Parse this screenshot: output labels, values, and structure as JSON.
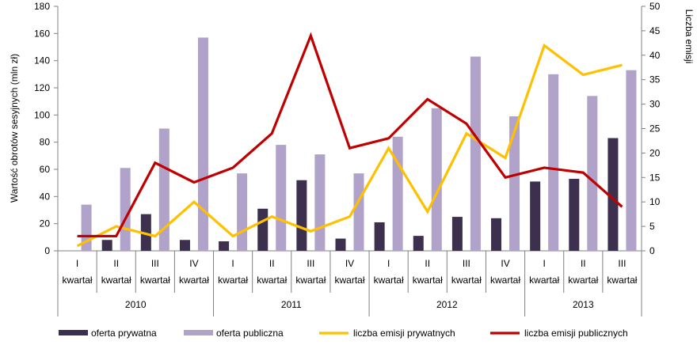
{
  "chart_data": {
    "type": "bar",
    "ylabel": "Wartość obrotów sesyjnych  (mln zł)",
    "y2label": "Liczba emisji",
    "ylim": [
      0,
      180
    ],
    "y2lim": [
      0,
      50
    ],
    "yticks": [
      "0",
      "20",
      "40",
      "60",
      "80",
      "100",
      "120",
      "140",
      "160",
      "180"
    ],
    "y2ticks": [
      "0",
      "5",
      "10",
      "15",
      "20",
      "25",
      "30",
      "35",
      "40",
      "45",
      "50"
    ],
    "categories": [
      {
        "quarter": "I",
        "sub": "kwartał"
      },
      {
        "quarter": "II",
        "sub": "kwartał"
      },
      {
        "quarter": "III",
        "sub": "kwartał"
      },
      {
        "quarter": "IV",
        "sub": "kwartał"
      },
      {
        "quarter": "I",
        "sub": "kwartał"
      },
      {
        "quarter": "II",
        "sub": "kwartał"
      },
      {
        "quarter": "III",
        "sub": "kwartał"
      },
      {
        "quarter": "IV",
        "sub": "kwartał"
      },
      {
        "quarter": "I",
        "sub": "kwartał"
      },
      {
        "quarter": "II",
        "sub": "kwartał"
      },
      {
        "quarter": "III",
        "sub": "kwartał"
      },
      {
        "quarter": "IV",
        "sub": "kwartał"
      },
      {
        "quarter": "I",
        "sub": "kwartał"
      },
      {
        "quarter": "II",
        "sub": "kwartał"
      },
      {
        "quarter": "III",
        "sub": "kwartał"
      }
    ],
    "years": [
      {
        "label": "2010",
        "count": 4
      },
      {
        "label": "2011",
        "count": 4
      },
      {
        "label": "2012",
        "count": 4
      },
      {
        "label": "2013",
        "count": 3
      }
    ],
    "series": [
      {
        "name": "oferta prywatna",
        "kind": "bar",
        "axis": "left",
        "color": "#3d2f4e",
        "values": [
          0,
          8,
          27,
          8,
          7,
          31,
          52,
          9,
          21,
          11,
          25,
          24,
          51,
          53,
          83
        ]
      },
      {
        "name": "oferta publiczna",
        "kind": "bar",
        "axis": "left",
        "color": "#b0a2c9",
        "values": [
          34,
          61,
          90,
          157,
          57,
          78,
          71,
          57,
          84,
          105,
          143,
          99,
          130,
          114,
          133
        ]
      },
      {
        "name": "liczba emisji prywatnych",
        "kind": "line",
        "axis": "right",
        "color": "#ffc000",
        "values": [
          1,
          5,
          3,
          10,
          3,
          7,
          4,
          7,
          21,
          8,
          24,
          19,
          42,
          36,
          38
        ]
      },
      {
        "name": "liczba emisji publicznych",
        "kind": "line",
        "axis": "right",
        "color": "#c00000",
        "values": [
          3,
          3,
          18,
          14,
          17,
          24,
          44,
          21,
          23,
          31,
          26,
          15,
          17,
          16,
          9
        ]
      }
    ],
    "legend_position": "bottom"
  }
}
